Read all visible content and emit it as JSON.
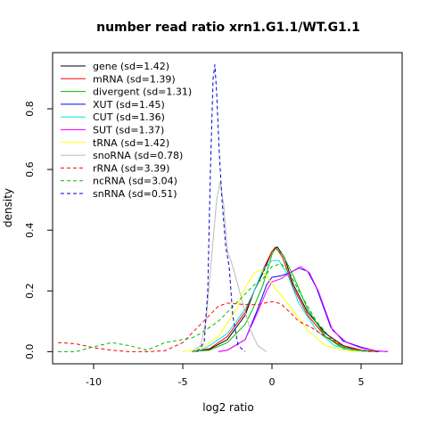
{
  "chart_data": {
    "type": "line",
    "title": "number read ratio xrn1.G1.1/WT.G1.1",
    "xlabel": "log2 ratio",
    "ylabel": "density",
    "xlim": [
      -12.3,
      7.3
    ],
    "ylim": [
      -0.04,
      0.985
    ],
    "x_ticks": [
      -10,
      -5,
      0,
      5
    ],
    "x_tick_labels": [
      "-10",
      "-5",
      "0",
      "5"
    ],
    "y_ticks": [
      0.0,
      0.2,
      0.4,
      0.6,
      0.8
    ],
    "y_tick_labels": [
      "0.0",
      "0.2",
      "0.4",
      "0.6",
      "0.8"
    ],
    "grid": false,
    "legend_position": "top-left",
    "series": [
      {
        "name": "gene (sd=1.42)",
        "color": "#000000",
        "dash": "solid",
        "points": [
          [
            -4.5,
            0
          ],
          [
            -3.5,
            0.008
          ],
          [
            -2.5,
            0.04
          ],
          [
            -1.5,
            0.12
          ],
          [
            -1,
            0.2
          ],
          [
            -0.5,
            0.26
          ],
          [
            0,
            0.33
          ],
          [
            0.3,
            0.345
          ],
          [
            0.7,
            0.31
          ],
          [
            1.2,
            0.22
          ],
          [
            2,
            0.13
          ],
          [
            3,
            0.06
          ],
          [
            4,
            0.02
          ],
          [
            5,
            0.005
          ],
          [
            6,
            0
          ]
        ]
      },
      {
        "name": "mRNA (sd=1.39)",
        "color": "#ff0000",
        "dash": "solid",
        "points": [
          [
            -4.5,
            0
          ],
          [
            -3.5,
            0.01
          ],
          [
            -2.5,
            0.05
          ],
          [
            -1.5,
            0.13
          ],
          [
            -1,
            0.2
          ],
          [
            -0.5,
            0.27
          ],
          [
            0,
            0.33
          ],
          [
            0.2,
            0.345
          ],
          [
            0.6,
            0.31
          ],
          [
            1.2,
            0.21
          ],
          [
            2,
            0.12
          ],
          [
            3,
            0.05
          ],
          [
            4,
            0.015
          ],
          [
            5,
            0.004
          ],
          [
            6,
            0
          ]
        ]
      },
      {
        "name": "divergent (sd=1.31)",
        "color": "#00bb00",
        "dash": "solid",
        "points": [
          [
            -4.5,
            0
          ],
          [
            -3.5,
            0.005
          ],
          [
            -2.5,
            0.03
          ],
          [
            -1.5,
            0.09
          ],
          [
            -1,
            0.15
          ],
          [
            -0.5,
            0.22
          ],
          [
            0,
            0.32
          ],
          [
            0.2,
            0.34
          ],
          [
            0.6,
            0.32
          ],
          [
            1.2,
            0.25
          ],
          [
            2,
            0.14
          ],
          [
            3,
            0.05
          ],
          [
            4,
            0.01
          ],
          [
            5,
            0.002
          ],
          [
            6,
            0
          ]
        ]
      },
      {
        "name": "XUT (sd=1.45)",
        "color": "#0000ff",
        "dash": "solid",
        "points": [
          [
            -3,
            0
          ],
          [
            -2.5,
            0.005
          ],
          [
            -1.5,
            0.04
          ],
          [
            -0.8,
            0.14
          ],
          [
            -0.3,
            0.22
          ],
          [
            0,
            0.245
          ],
          [
            0.5,
            0.25
          ],
          [
            1,
            0.26
          ],
          [
            1.5,
            0.275
          ],
          [
            2,
            0.265
          ],
          [
            2.5,
            0.21
          ],
          [
            3.3,
            0.08
          ],
          [
            4,
            0.035
          ],
          [
            5,
            0.015
          ],
          [
            5.8,
            0.003
          ],
          [
            6.5,
            0
          ]
        ]
      },
      {
        "name": "CUT (sd=1.36)",
        "color": "#00e5e5",
        "dash": "solid",
        "points": [
          [
            -4.2,
            0
          ],
          [
            -3.5,
            0.02
          ],
          [
            -2.5,
            0.06
          ],
          [
            -1.5,
            0.14
          ],
          [
            -1,
            0.2
          ],
          [
            -0.5,
            0.27
          ],
          [
            0,
            0.3
          ],
          [
            0.4,
            0.3
          ],
          [
            0.9,
            0.25
          ],
          [
            1.5,
            0.16
          ],
          [
            2.5,
            0.07
          ],
          [
            3.5,
            0.02
          ],
          [
            4.5,
            0.005
          ],
          [
            5.5,
            0
          ]
        ]
      },
      {
        "name": "SUT (sd=1.37)",
        "color": "#ff00ff",
        "dash": "solid",
        "points": [
          [
            -3,
            0
          ],
          [
            -2.5,
            0.005
          ],
          [
            -1.5,
            0.04
          ],
          [
            -0.8,
            0.13
          ],
          [
            -0.3,
            0.2
          ],
          [
            0,
            0.23
          ],
          [
            0.5,
            0.24
          ],
          [
            1,
            0.26
          ],
          [
            1.6,
            0.28
          ],
          [
            2.1,
            0.26
          ],
          [
            2.6,
            0.2
          ],
          [
            3.4,
            0.07
          ],
          [
            4.2,
            0.03
          ],
          [
            5,
            0.012
          ],
          [
            5.8,
            0.003
          ],
          [
            6.5,
            0
          ]
        ]
      },
      {
        "name": "tRNA (sd=1.42)",
        "color": "#ffff00",
        "dash": "solid",
        "points": [
          [
            -5,
            0
          ],
          [
            -4,
            0.01
          ],
          [
            -3,
            0.05
          ],
          [
            -2,
            0.14
          ],
          [
            -1.5,
            0.21
          ],
          [
            -1,
            0.26
          ],
          [
            -0.6,
            0.27
          ],
          [
            -0.2,
            0.24
          ],
          [
            0.3,
            0.2
          ],
          [
            1,
            0.15
          ],
          [
            2,
            0.07
          ],
          [
            3,
            0.02
          ],
          [
            4,
            0.005
          ],
          [
            5,
            0
          ]
        ]
      },
      {
        "name": "snoRNA (sd=0.78)",
        "color": "#bbbbbb",
        "dash": "solid",
        "points": [
          [
            -4.5,
            0
          ],
          [
            -4,
            0.02
          ],
          [
            -3.7,
            0.1
          ],
          [
            -3.4,
            0.3
          ],
          [
            -3.1,
            0.5
          ],
          [
            -2.9,
            0.56
          ],
          [
            -2.7,
            0.48
          ],
          [
            -2.5,
            0.33
          ],
          [
            -2.3,
            0.3
          ],
          [
            -2,
            0.24
          ],
          [
            -1.6,
            0.15
          ],
          [
            -1.2,
            0.07
          ],
          [
            -0.8,
            0.02
          ],
          [
            -0.3,
            0
          ]
        ]
      },
      {
        "name": "rRNA (sd=3.39)",
        "color": "#ff0000",
        "dash": "dashed",
        "points": [
          [
            -12,
            0.03
          ],
          [
            -11,
            0.026
          ],
          [
            -10,
            0.013
          ],
          [
            -9,
            0.005
          ],
          [
            -8,
            0
          ],
          [
            -7,
            0
          ],
          [
            -6,
            0.003
          ],
          [
            -5,
            0.03
          ],
          [
            -4,
            0.09
          ],
          [
            -3,
            0.15
          ],
          [
            -2.5,
            0.16
          ],
          [
            -1.5,
            0.155
          ],
          [
            -0.8,
            0.155
          ],
          [
            0,
            0.165
          ],
          [
            0.5,
            0.158
          ],
          [
            1,
            0.13
          ],
          [
            1.5,
            0.1
          ],
          [
            2.2,
            0.08
          ],
          [
            3,
            0.05
          ],
          [
            4,
            0.02
          ],
          [
            5,
            0.004
          ],
          [
            6,
            0
          ]
        ]
      },
      {
        "name": "ncRNA (sd=3.04)",
        "color": "#00bb00",
        "dash": "dashed",
        "points": [
          [
            -12,
            0
          ],
          [
            -11,
            0
          ],
          [
            -10,
            0.016
          ],
          [
            -9,
            0.03
          ],
          [
            -8,
            0.02
          ],
          [
            -7,
            0.005
          ],
          [
            -6,
            0.03
          ],
          [
            -5,
            0.04
          ],
          [
            -4.5,
            0.045
          ],
          [
            -4,
            0.06
          ],
          [
            -3,
            0.1
          ],
          [
            -2,
            0.16
          ],
          [
            -1,
            0.22
          ],
          [
            -0.5,
            0.24
          ],
          [
            0,
            0.28
          ],
          [
            0.5,
            0.29
          ],
          [
            1,
            0.26
          ],
          [
            1.5,
            0.2
          ],
          [
            2.5,
            0.1
          ],
          [
            3.5,
            0.03
          ],
          [
            4.5,
            0.006
          ],
          [
            5.5,
            0
          ]
        ]
      },
      {
        "name": "snRNA (sd=0.51)",
        "color": "#0000cc",
        "dash": "dashed",
        "points": [
          [
            -4.2,
            0
          ],
          [
            -3.8,
            0.03
          ],
          [
            -3.6,
            0.2
          ],
          [
            -3.45,
            0.6
          ],
          [
            -3.3,
            0.9
          ],
          [
            -3.2,
            0.945
          ],
          [
            -3.1,
            0.85
          ],
          [
            -2.95,
            0.65
          ],
          [
            -2.8,
            0.5
          ],
          [
            -2.6,
            0.35
          ],
          [
            -2.4,
            0.28
          ],
          [
            -2.2,
            0.12
          ],
          [
            -1.9,
            0.02
          ],
          [
            -1.5,
            0
          ]
        ]
      }
    ]
  }
}
